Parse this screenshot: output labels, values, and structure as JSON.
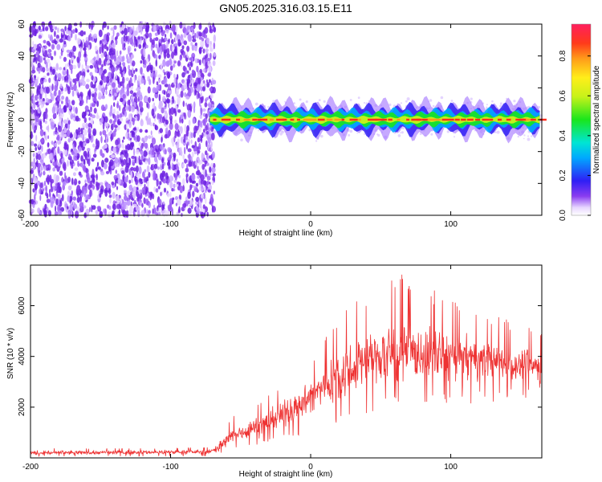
{
  "figure": {
    "title": "GN05.2025.316.03.15.E11"
  },
  "chart_data": [
    {
      "type": "heatmap",
      "title": "GN05.2025.316.03.15.E11",
      "xlabel": "Height of straight line (km)",
      "ylabel": "Frequency (Hz)",
      "xlim": [
        -200,
        165
      ],
      "ylim": [
        -60,
        60
      ],
      "xticks": [
        -200,
        -100,
        0,
        100
      ],
      "yticks": [
        -60,
        -40,
        -20,
        0,
        20,
        40,
        60
      ],
      "noise_region_x": [
        -200,
        -72
      ],
      "signal_start_x": -72,
      "signal_center_frequency": 0,
      "signal_core_halfwidth_hz": 2,
      "signal_halo_halfwidth_hz": 7,
      "colorbar": {
        "label": "Normalized spectral amplitude",
        "range": [
          0,
          0.96
        ],
        "ticks": [
          0.0,
          0.2,
          0.4,
          0.6,
          0.8
        ]
      }
    },
    {
      "type": "line",
      "xlabel": "Height of straight line (km)",
      "ylabel": "SNR (10 * v/v)",
      "color": "#ee3333",
      "xlim": [
        -200,
        165
      ],
      "ylim": [
        0,
        7600
      ],
      "xticks": [
        -200,
        -100,
        0,
        100
      ],
      "yticks": [
        2000,
        4000,
        6000
      ],
      "envelope": {
        "x": [
          -200,
          -150,
          -100,
          -72,
          -65,
          -55,
          -40,
          -20,
          0,
          20,
          40,
          60,
          80,
          100,
          120,
          140,
          165
        ],
        "mean": [
          200,
          210,
          230,
          240,
          450,
          900,
          1200,
          1700,
          2400,
          3300,
          3900,
          4100,
          4100,
          4000,
          3900,
          3700,
          3600
        ],
        "low": [
          80,
          80,
          80,
          90,
          200,
          400,
          600,
          900,
          1200,
          1700,
          2200,
          2400,
          2500,
          2600,
          2700,
          2800,
          2900
        ],
        "high": [
          350,
          380,
          380,
          400,
          1000,
          1600,
          2000,
          2700,
          3800,
          5500,
          6200,
          7000,
          6600,
          6000,
          5600,
          5200,
          5000
        ]
      }
    }
  ]
}
